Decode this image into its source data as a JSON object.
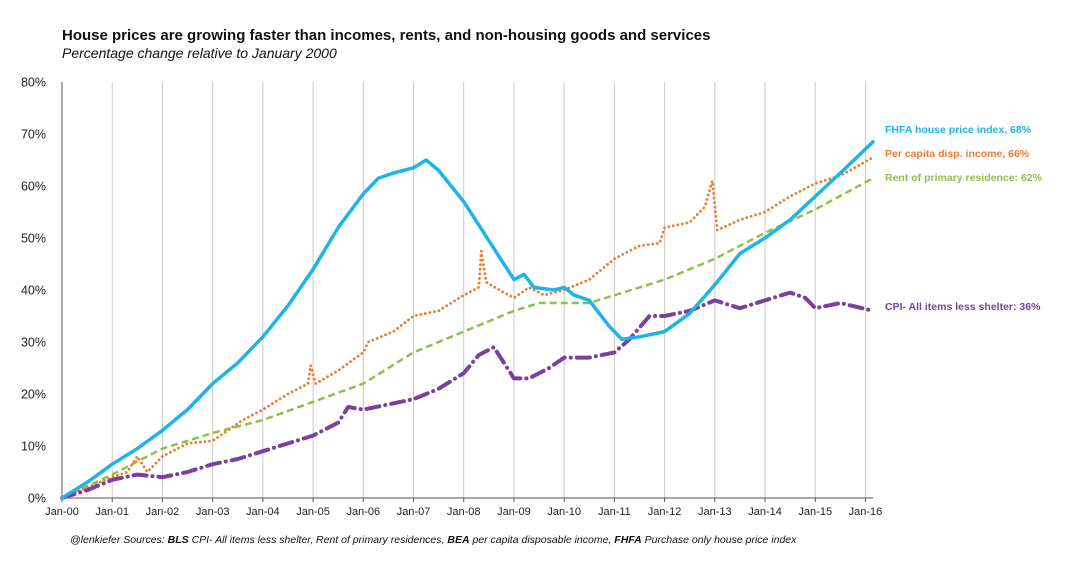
{
  "title": "House prices are growing faster than incomes, rents, and non-housing goods and services",
  "subtitle": "Percentage change relative to January 2000",
  "footer": {
    "handle": "@lenkiefer",
    "sources_label": "Sources:",
    "src1_org": "BLS",
    "src1_text": "CPI- All items less shelter, Rent of primary residences,",
    "src2_org": "BEA",
    "src2_text": "per capita disposable income,",
    "src3_org": "FHFA",
    "src3_text": "Purchase only house price index"
  },
  "chart_data": {
    "type": "line",
    "ylim": [
      0,
      80
    ],
    "yticks": [
      "0%",
      "10%",
      "20%",
      "30%",
      "40%",
      "50%",
      "60%",
      "70%",
      "80%"
    ],
    "xlim": [
      2000,
      2016.15
    ],
    "xticks": [
      "Jan-00",
      "Jan-01",
      "Jan-02",
      "Jan-03",
      "Jan-04",
      "Jan-05",
      "Jan-06",
      "Jan-07",
      "Jan-08",
      "Jan-09",
      "Jan-10",
      "Jan-11",
      "Jan-12",
      "Jan-13",
      "Jan-14",
      "Jan-15",
      "Jan-16"
    ],
    "grid": "vertical",
    "series": [
      {
        "name": "FHFA house price index, 68%",
        "color": "#1eb4e8",
        "style": "solid",
        "points": [
          [
            2000,
            0
          ],
          [
            2000.5,
            3
          ],
          [
            2001,
            6.5
          ],
          [
            2001.5,
            9.5
          ],
          [
            2002,
            13
          ],
          [
            2002.5,
            17
          ],
          [
            2003,
            22
          ],
          [
            2003.5,
            26
          ],
          [
            2004,
            31
          ],
          [
            2004.5,
            37
          ],
          [
            2005,
            44
          ],
          [
            2005.5,
            52
          ],
          [
            2006,
            58.5
          ],
          [
            2006.3,
            61.5
          ],
          [
            2006.6,
            62.5
          ],
          [
            2007,
            63.5
          ],
          [
            2007.25,
            65
          ],
          [
            2007.5,
            63
          ],
          [
            2008,
            57
          ],
          [
            2008.4,
            51
          ],
          [
            2008.8,
            45
          ],
          [
            2009,
            42
          ],
          [
            2009.2,
            43
          ],
          [
            2009.4,
            40.5
          ],
          [
            2009.8,
            40
          ],
          [
            2010,
            40.5
          ],
          [
            2010.2,
            39
          ],
          [
            2010.5,
            38
          ],
          [
            2010.9,
            33
          ],
          [
            2011.15,
            30.5
          ],
          [
            2011.5,
            31
          ],
          [
            2012,
            32
          ],
          [
            2012.5,
            35.5
          ],
          [
            2013,
            41
          ],
          [
            2013.5,
            47
          ],
          [
            2014,
            50
          ],
          [
            2014.5,
            53.5
          ],
          [
            2015,
            58
          ],
          [
            2015.5,
            62.5
          ],
          [
            2016.15,
            68.5
          ]
        ]
      },
      {
        "name": "Per capita disp. income, 66%",
        "color": "#ed7d31",
        "style": "dotted",
        "points": [
          [
            2000,
            0
          ],
          [
            2000.5,
            2
          ],
          [
            2001,
            4
          ],
          [
            2001.3,
            5
          ],
          [
            2001.5,
            8
          ],
          [
            2001.7,
            5
          ],
          [
            2002,
            8
          ],
          [
            2002.5,
            10.5
          ],
          [
            2003,
            11
          ],
          [
            2003.3,
            13
          ],
          [
            2003.6,
            15
          ],
          [
            2004,
            17
          ],
          [
            2004.5,
            20
          ],
          [
            2004.9,
            22
          ],
          [
            2004.95,
            25.5
          ],
          [
            2005.05,
            22
          ],
          [
            2005.5,
            24.5
          ],
          [
            2006,
            28
          ],
          [
            2006.1,
            30
          ],
          [
            2006.6,
            32
          ],
          [
            2007,
            35
          ],
          [
            2007.5,
            36
          ],
          [
            2008,
            39
          ],
          [
            2008.3,
            40.5
          ],
          [
            2008.35,
            47.5
          ],
          [
            2008.45,
            41.5
          ],
          [
            2008.8,
            39.5
          ],
          [
            2009,
            38.5
          ],
          [
            2009.3,
            40.5
          ],
          [
            2009.6,
            39
          ],
          [
            2010,
            40
          ],
          [
            2010.5,
            42
          ],
          [
            2011,
            46
          ],
          [
            2011.5,
            48.5
          ],
          [
            2011.9,
            49
          ],
          [
            2012,
            52
          ],
          [
            2012.5,
            53
          ],
          [
            2012.8,
            56
          ],
          [
            2012.95,
            61
          ],
          [
            2013.05,
            51.5
          ],
          [
            2013.5,
            53.5
          ],
          [
            2014,
            55
          ],
          [
            2014.5,
            58
          ],
          [
            2015,
            60.5
          ],
          [
            2015.5,
            62
          ],
          [
            2016.15,
            65.5
          ]
        ]
      },
      {
        "name": "Rent of primary residence: 62%",
        "color": "#8bc34a",
        "style": "dashed",
        "points": [
          [
            2000,
            0
          ],
          [
            2001,
            4.5
          ],
          [
            2002,
            9.5
          ],
          [
            2003,
            12.5
          ],
          [
            2004,
            15
          ],
          [
            2005,
            18.5
          ],
          [
            2006,
            22
          ],
          [
            2007,
            28
          ],
          [
            2008,
            32
          ],
          [
            2009,
            36
          ],
          [
            2009.5,
            37.5
          ],
          [
            2010,
            37.5
          ],
          [
            2010.5,
            37.5
          ],
          [
            2011,
            39
          ],
          [
            2012,
            42
          ],
          [
            2013,
            46
          ],
          [
            2014,
            51
          ],
          [
            2015,
            55.5
          ],
          [
            2016.15,
            61.5
          ]
        ]
      },
      {
        "name": "CPI- All items less shelter: 36%",
        "color": "#7b3fa0",
        "style": "dashdot",
        "points": [
          [
            2000,
            0
          ],
          [
            2000.5,
            1.5
          ],
          [
            2001,
            3.5
          ],
          [
            2001.5,
            4.5
          ],
          [
            2002,
            4
          ],
          [
            2002.5,
            5
          ],
          [
            2003,
            6.5
          ],
          [
            2003.5,
            7.5
          ],
          [
            2004,
            9
          ],
          [
            2004.5,
            10.5
          ],
          [
            2005,
            12
          ],
          [
            2005.5,
            14.5
          ],
          [
            2005.7,
            17.5
          ],
          [
            2006,
            17
          ],
          [
            2006.5,
            18
          ],
          [
            2007,
            19
          ],
          [
            2007.5,
            21
          ],
          [
            2008,
            24
          ],
          [
            2008.3,
            27.5
          ],
          [
            2008.6,
            29
          ],
          [
            2008.8,
            26
          ],
          [
            2009,
            23
          ],
          [
            2009.3,
            23
          ],
          [
            2009.7,
            25
          ],
          [
            2010,
            27
          ],
          [
            2010.5,
            27
          ],
          [
            2011,
            28
          ],
          [
            2011.3,
            30.5
          ],
          [
            2011.7,
            35
          ],
          [
            2012,
            35
          ],
          [
            2012.5,
            36
          ],
          [
            2013,
            38
          ],
          [
            2013.5,
            36.5
          ],
          [
            2014,
            38
          ],
          [
            2014.5,
            39.5
          ],
          [
            2014.8,
            38.5
          ],
          [
            2015,
            36.5
          ],
          [
            2015.5,
            37.5
          ],
          [
            2016.15,
            36
          ]
        ]
      }
    ]
  }
}
